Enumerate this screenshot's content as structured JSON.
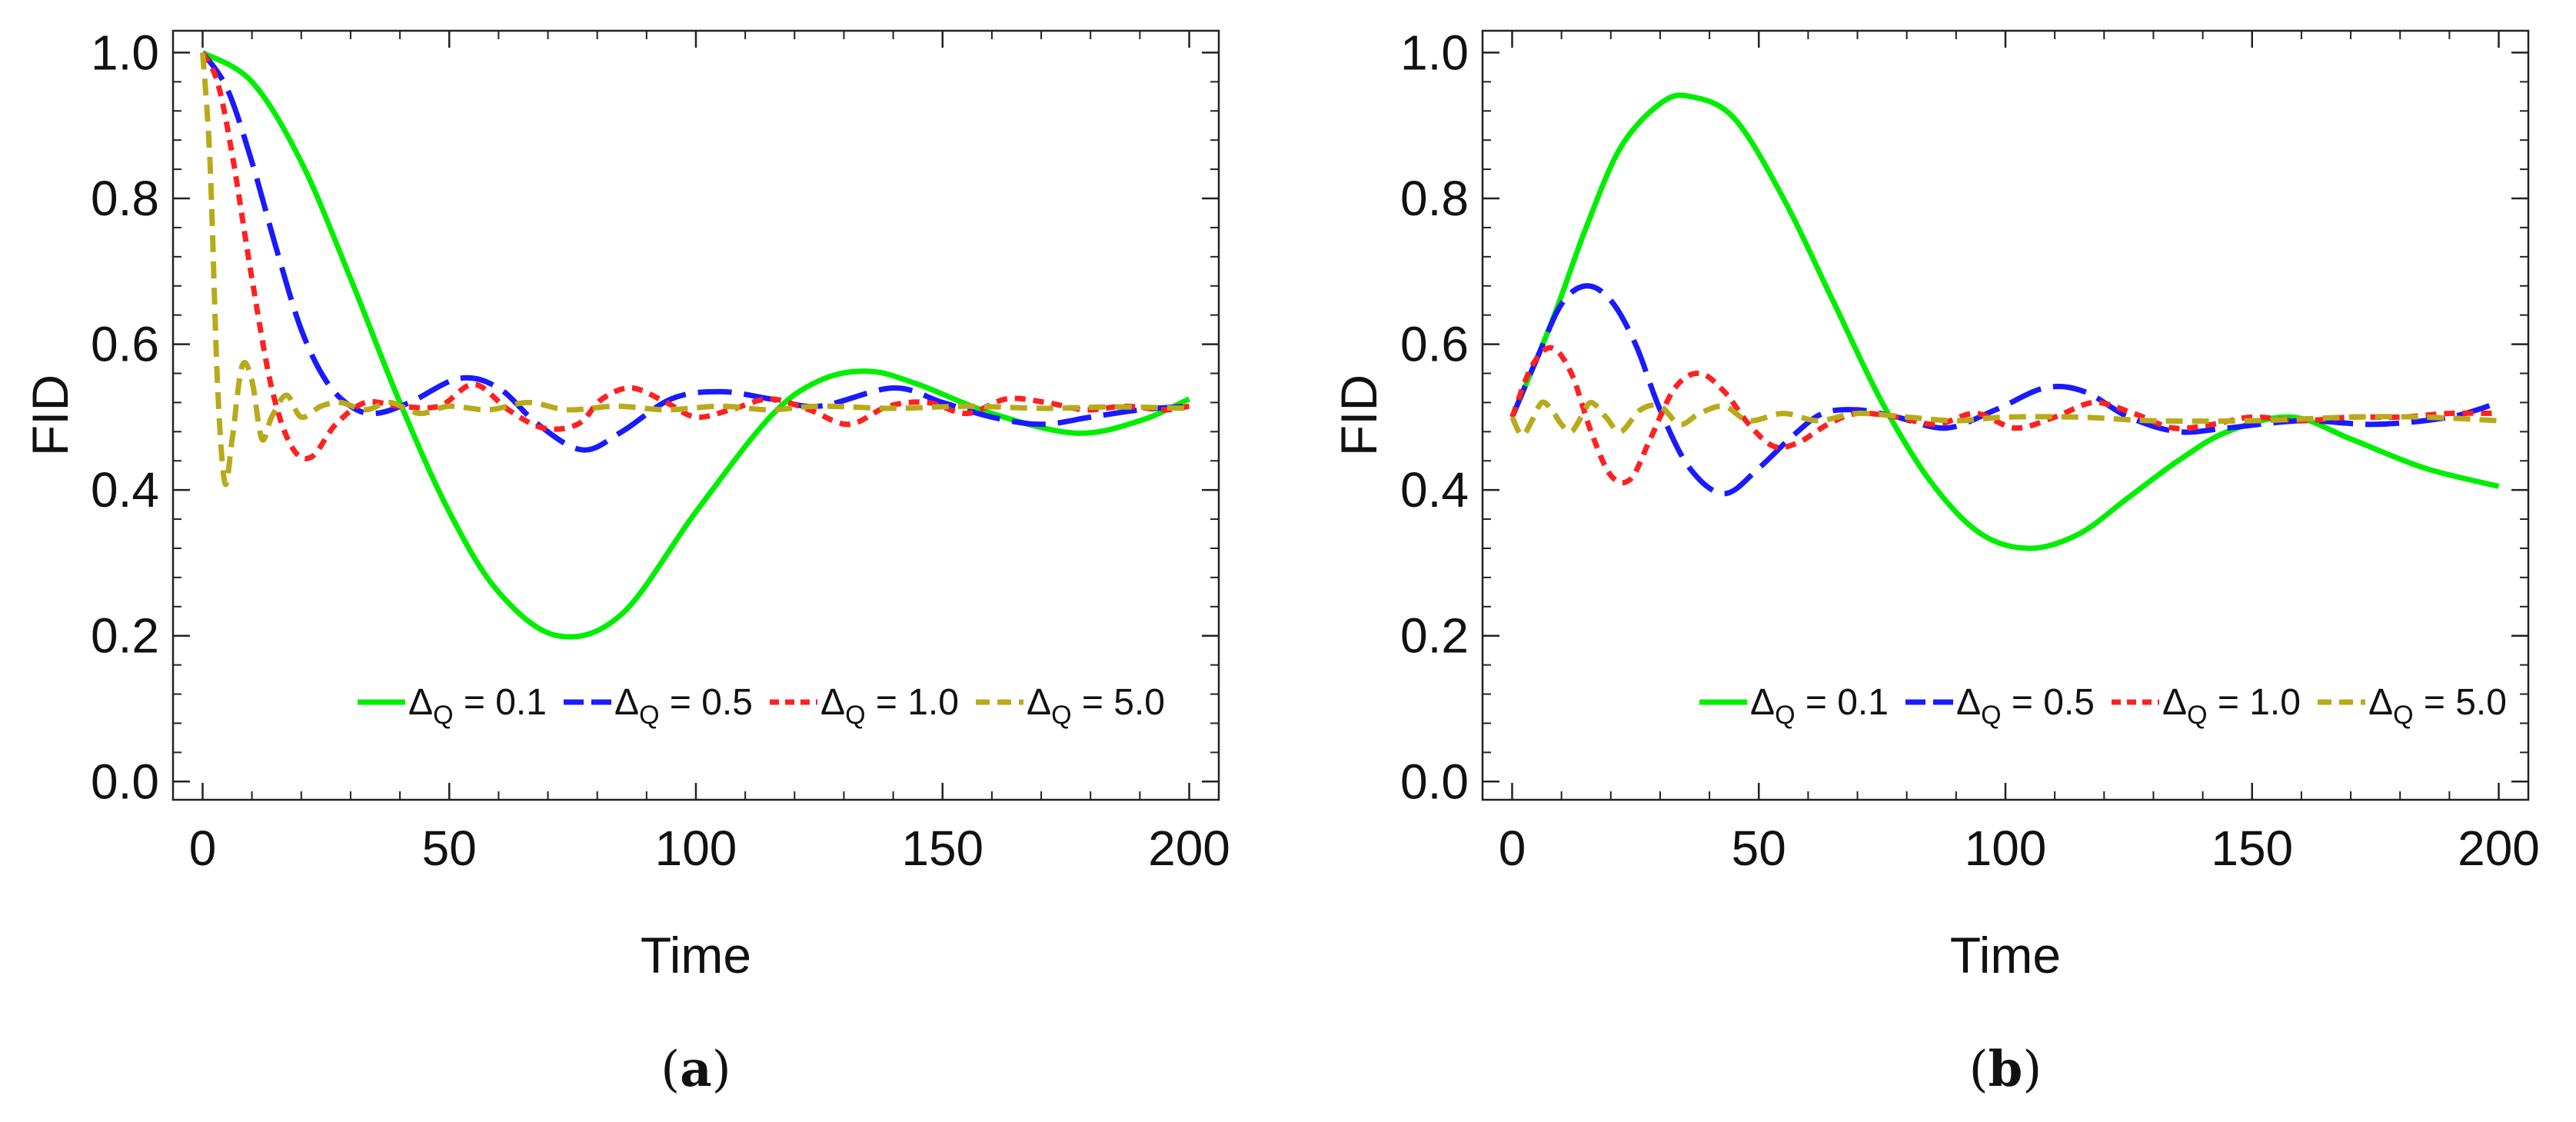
{
  "chart_data": [
    {
      "panel": "a",
      "caption_open": "(",
      "caption_letter": "a",
      "caption_close": ")",
      "type": "line",
      "title": "",
      "xlabel": "Time",
      "ylabel": "FID",
      "xlim": [
        0,
        200
      ],
      "ylim": [
        0,
        1
      ],
      "xticks": [
        0,
        50,
        100,
        150,
        200
      ],
      "xtick_labels": [
        "0",
        "50",
        "100",
        "150",
        "200"
      ],
      "yticks": [
        0,
        0.2,
        0.4,
        0.6,
        0.8,
        1.0
      ],
      "ytick_labels": [
        "0.0",
        "0.2",
        "0.4",
        "0.6",
        "0.8",
        "1.0"
      ],
      "legend_position": "bottom-right",
      "series": [
        {
          "name": "Δ_Q = 0.1",
          "legend_symbol": "Δ",
          "legend_sub": "Q",
          "legend_value": " = 0.1",
          "color": "#00ee00",
          "dash": "solid",
          "x": [
            0,
            10,
            20,
            30,
            40,
            50,
            60,
            72,
            85,
            100,
            115,
            125,
            135,
            145,
            160,
            177,
            190,
            200
          ],
          "y": [
            1.0,
            0.96,
            0.85,
            0.69,
            0.52,
            0.37,
            0.26,
            0.2,
            0.23,
            0.37,
            0.5,
            0.55,
            0.563,
            0.545,
            0.505,
            0.478,
            0.495,
            0.525
          ]
        },
        {
          "name": "Δ_Q = 0.5",
          "legend_symbol": "Δ",
          "legend_sub": "Q",
          "legend_value": " = 0.5",
          "color": "#1a1aff",
          "dash": "long",
          "x": [
            0,
            5,
            10,
            15,
            20,
            25,
            30,
            35,
            42,
            52,
            60,
            68,
            77,
            85,
            95,
            105,
            115,
            125,
            140,
            150,
            160,
            170,
            180,
            190,
            200
          ],
          "y": [
            1.0,
            0.95,
            0.85,
            0.73,
            0.62,
            0.55,
            0.515,
            0.505,
            0.52,
            0.553,
            0.54,
            0.49,
            0.455,
            0.48,
            0.525,
            0.535,
            0.525,
            0.515,
            0.54,
            0.52,
            0.5,
            0.49,
            0.5,
            0.51,
            0.515
          ]
        },
        {
          "name": "Δ_Q = 1.0",
          "legend_symbol": "Δ",
          "legend_sub": "Q",
          "legend_value": " = 1.0",
          "color": "#ff2020",
          "dash": "short",
          "x": [
            0,
            3,
            6,
            10,
            14,
            18,
            22,
            27,
            33,
            40,
            48,
            55,
            62,
            69,
            76,
            81,
            87,
            94,
            100,
            107,
            115,
            123,
            131,
            139,
            147,
            155,
            163,
            171,
            179,
            187,
            195,
            200
          ],
          "y": [
            1.0,
            0.96,
            0.86,
            0.69,
            0.54,
            0.46,
            0.445,
            0.49,
            0.52,
            0.515,
            0.515,
            0.545,
            0.51,
            0.485,
            0.49,
            0.525,
            0.54,
            0.52,
            0.5,
            0.51,
            0.525,
            0.51,
            0.49,
            0.515,
            0.52,
            0.505,
            0.525,
            0.52,
            0.51,
            0.515,
            0.51,
            0.515
          ]
        },
        {
          "name": "Δ_Q = 5.0",
          "legend_symbol": "Δ",
          "legend_sub": "Q",
          "legend_value": " = 5.0",
          "color": "#b8aa1a",
          "dash": "dash",
          "x": [
            0,
            1.5,
            3,
            4.5,
            6,
            8,
            10,
            12,
            14,
            17,
            20,
            24,
            28,
            33,
            38,
            44,
            50,
            58,
            66,
            74,
            84,
            94,
            105,
            115,
            125,
            140,
            155,
            170,
            185,
            200
          ],
          "y": [
            1.0,
            0.85,
            0.55,
            0.41,
            0.47,
            0.57,
            0.55,
            0.47,
            0.5,
            0.53,
            0.5,
            0.515,
            0.52,
            0.51,
            0.52,
            0.505,
            0.515,
            0.51,
            0.52,
            0.51,
            0.515,
            0.51,
            0.515,
            0.51,
            0.515,
            0.512,
            0.515,
            0.512,
            0.514,
            0.512
          ]
        }
      ]
    },
    {
      "panel": "b",
      "caption_open": "(",
      "caption_letter": "b",
      "caption_close": ")",
      "type": "line",
      "title": "",
      "xlabel": "Time",
      "ylabel": "FID",
      "xlim": [
        0,
        200
      ],
      "ylim": [
        0,
        1
      ],
      "xticks": [
        0,
        50,
        100,
        150,
        200
      ],
      "xtick_labels": [
        "0",
        "50",
        "100",
        "150",
        "200"
      ],
      "yticks": [
        0,
        0.2,
        0.4,
        0.6,
        0.8,
        1.0
      ],
      "ytick_labels": [
        "0.0",
        "0.2",
        "0.4",
        "0.6",
        "0.8",
        "1.0"
      ],
      "legend_position": "bottom-right",
      "series": [
        {
          "name": "Δ_Q = 0.1",
          "legend_symbol": "Δ",
          "legend_sub": "Q",
          "legend_value": " = 0.1",
          "color": "#00ee00",
          "dash": "solid",
          "x": [
            0,
            8,
            15,
            22,
            30,
            36,
            45,
            55,
            65,
            75,
            85,
            95,
            105,
            115,
            125,
            135,
            145,
            158,
            170,
            185,
            200
          ],
          "y": [
            0.5,
            0.63,
            0.76,
            0.87,
            0.93,
            0.94,
            0.91,
            0.8,
            0.66,
            0.52,
            0.41,
            0.34,
            0.32,
            0.34,
            0.39,
            0.44,
            0.48,
            0.5,
            0.47,
            0.43,
            0.405
          ]
        },
        {
          "name": "Δ_Q = 0.5",
          "legend_symbol": "Δ",
          "legend_sub": "Q",
          "legend_value": " = 0.5",
          "color": "#1a1aff",
          "dash": "long",
          "x": [
            0,
            5,
            10,
            15,
            20,
            25,
            30,
            36,
            43,
            50,
            57,
            63,
            70,
            78,
            88,
            98,
            108,
            116,
            125,
            135,
            145,
            160,
            175,
            190,
            200
          ],
          "y": [
            0.5,
            0.58,
            0.655,
            0.68,
            0.66,
            0.6,
            0.51,
            0.43,
            0.395,
            0.43,
            0.475,
            0.505,
            0.51,
            0.5,
            0.485,
            0.51,
            0.54,
            0.535,
            0.5,
            0.48,
            0.485,
            0.495,
            0.49,
            0.5,
            0.52
          ]
        },
        {
          "name": "Δ_Q = 1.0",
          "legend_symbol": "Δ",
          "legend_sub": "Q",
          "legend_value": " = 1.0",
          "color": "#ff2020",
          "dash": "short",
          "x": [
            0,
            4,
            8,
            12,
            16,
            20,
            24,
            28,
            33,
            38,
            43,
            48,
            53,
            58,
            64,
            70,
            78,
            86,
            94,
            102,
            110,
            118,
            126,
            134,
            142,
            150,
            160,
            170,
            180,
            190,
            200
          ],
          "y": [
            0.5,
            0.57,
            0.595,
            0.56,
            0.48,
            0.42,
            0.415,
            0.47,
            0.54,
            0.56,
            0.535,
            0.49,
            0.46,
            0.465,
            0.49,
            0.505,
            0.5,
            0.49,
            0.505,
            0.485,
            0.5,
            0.52,
            0.505,
            0.485,
            0.49,
            0.5,
            0.495,
            0.5,
            0.5,
            0.505,
            0.505
          ]
        },
        {
          "name": "Δ_Q = 5.0",
          "legend_symbol": "Δ",
          "legend_sub": "Q",
          "legend_value": " = 5.0",
          "color": "#b8aa1a",
          "dash": "dash",
          "x": [
            0,
            2,
            4,
            6,
            8,
            10,
            12,
            14,
            16,
            19,
            22,
            26,
            30,
            34,
            38,
            43,
            48,
            55,
            62,
            70,
            80,
            90,
            100,
            115,
            130,
            150,
            170,
            185,
            200
          ],
          "y": [
            0.5,
            0.475,
            0.495,
            0.52,
            0.51,
            0.49,
            0.48,
            0.5,
            0.52,
            0.5,
            0.48,
            0.51,
            0.515,
            0.49,
            0.505,
            0.515,
            0.495,
            0.505,
            0.495,
            0.505,
            0.5,
            0.495,
            0.5,
            0.5,
            0.495,
            0.495,
            0.5,
            0.5,
            0.495
          ]
        }
      ]
    }
  ]
}
